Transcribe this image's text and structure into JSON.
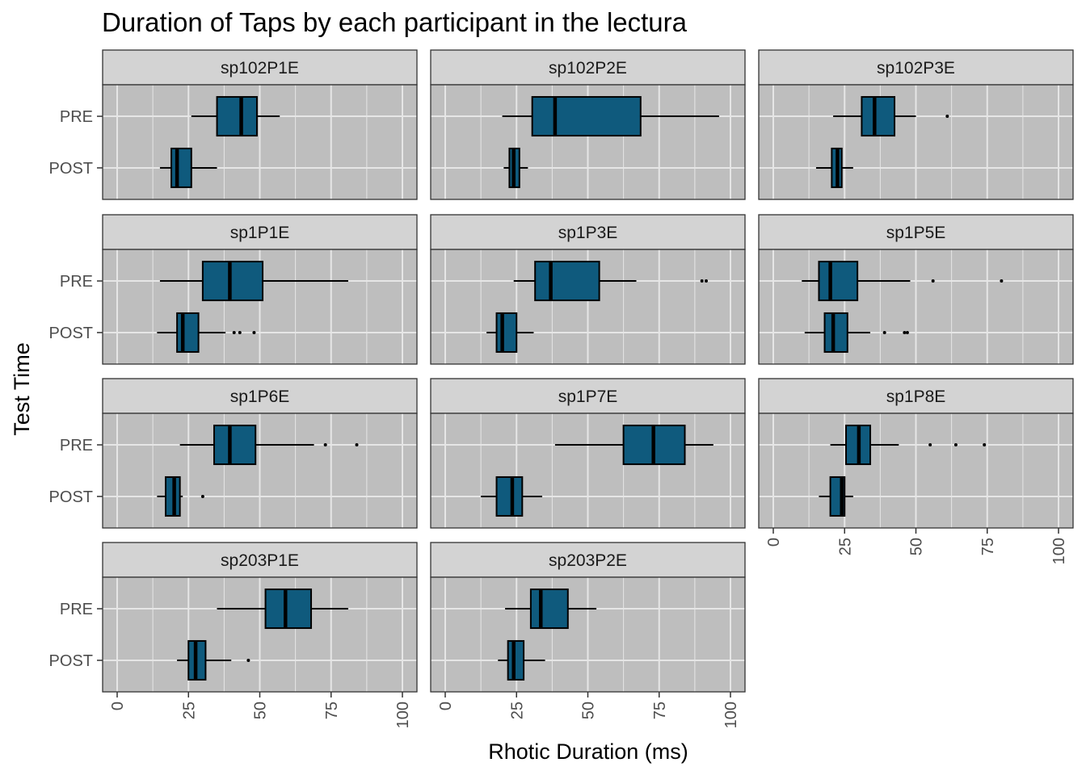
{
  "chart_data": {
    "type": "boxplot",
    "title": "Duration of Taps by each participant in the lectura",
    "xlabel": "Rhotic Duration (ms)",
    "ylabel": "Test Time",
    "categories": [
      "PRE",
      "POST"
    ],
    "xlim": [
      0,
      100
    ],
    "x_ticks": [
      "0",
      "25",
      "50",
      "75",
      "100"
    ],
    "grid": true,
    "legend": "none",
    "colors": {
      "box_fill": "#0f5a7d",
      "panel_bg": "#bebebe",
      "strip_bg": "#d3d3d3",
      "grid": "#e6e6e6"
    },
    "panels": [
      {
        "name": "sp102P1E",
        "boxes": [
          {
            "group": "PRE",
            "whisker_low": 26,
            "q1": 35,
            "median": 43.5,
            "q3": 49,
            "whisker_high": 57,
            "outliers": []
          },
          {
            "group": "POST",
            "whisker_low": 15,
            "q1": 19,
            "median": 21,
            "q3": 26,
            "whisker_high": 35,
            "outliers": []
          }
        ]
      },
      {
        "name": "sp102P2E",
        "boxes": [
          {
            "group": "PRE",
            "whisker_low": 20,
            "q1": 30.5,
            "median": 38.5,
            "q3": 68.5,
            "whisker_high": 96,
            "outliers": []
          },
          {
            "group": "POST",
            "whisker_low": 20.5,
            "q1": 22.5,
            "median": 24,
            "q3": 26,
            "whisker_high": 29,
            "outliers": []
          }
        ]
      },
      {
        "name": "sp102P3E",
        "boxes": [
          {
            "group": "PRE",
            "whisker_low": 21,
            "q1": 31,
            "median": 35.5,
            "q3": 42.5,
            "whisker_high": 50,
            "outliers": [
              61
            ]
          },
          {
            "group": "POST",
            "whisker_low": 15,
            "q1": 20.5,
            "median": 22.5,
            "q3": 24,
            "whisker_high": 28,
            "outliers": []
          }
        ]
      },
      {
        "name": "sp1P1E",
        "boxes": [
          {
            "group": "PRE",
            "whisker_low": 15,
            "q1": 30,
            "median": 39.5,
            "q3": 51,
            "whisker_high": 81,
            "outliers": []
          },
          {
            "group": "POST",
            "whisker_low": 14,
            "q1": 21,
            "median": 23,
            "q3": 28.5,
            "whisker_high": 38,
            "outliers": [
              41,
              43,
              48
            ]
          }
        ]
      },
      {
        "name": "sp1P3E",
        "boxes": [
          {
            "group": "PRE",
            "whisker_low": 24,
            "q1": 31.5,
            "median": 37,
            "q3": 54,
            "whisker_high": 67,
            "outliers": [
              90,
              91.5
            ]
          },
          {
            "group": "POST",
            "whisker_low": 14.5,
            "q1": 18,
            "median": 20,
            "q3": 25,
            "whisker_high": 31,
            "outliers": []
          }
        ]
      },
      {
        "name": "sp1P5E",
        "boxes": [
          {
            "group": "PRE",
            "whisker_low": 10,
            "q1": 16,
            "median": 20,
            "q3": 29.5,
            "whisker_high": 48,
            "outliers": [
              56,
              80
            ]
          },
          {
            "group": "POST",
            "whisker_low": 11,
            "q1": 18,
            "median": 21,
            "q3": 26,
            "whisker_high": 34,
            "outliers": [
              39,
              46,
              47
            ]
          }
        ]
      },
      {
        "name": "sp1P6E",
        "boxes": [
          {
            "group": "PRE",
            "whisker_low": 22,
            "q1": 34,
            "median": 39.5,
            "q3": 48.5,
            "whisker_high": 69,
            "outliers": [
              73,
              84
            ]
          },
          {
            "group": "POST",
            "whisker_low": 14,
            "q1": 17,
            "median": 20,
            "q3": 22,
            "whisker_high": 23,
            "outliers": [
              30
            ]
          }
        ]
      },
      {
        "name": "sp1P7E",
        "boxes": [
          {
            "group": "PRE",
            "whisker_low": 38.5,
            "q1": 62.5,
            "median": 73,
            "q3": 84,
            "whisker_high": 94,
            "outliers": []
          },
          {
            "group": "POST",
            "whisker_low": 12.5,
            "q1": 18,
            "median": 23.5,
            "q3": 27,
            "whisker_high": 34,
            "outliers": []
          }
        ]
      },
      {
        "name": "sp1P8E",
        "boxes": [
          {
            "group": "PRE",
            "whisker_low": 20,
            "q1": 25.5,
            "median": 30,
            "q3": 34,
            "whisker_high": 44,
            "outliers": [
              55,
              64,
              74
            ]
          },
          {
            "group": "POST",
            "whisker_low": 16,
            "q1": 20,
            "median": 24,
            "q3": 25,
            "whisker_high": 28,
            "outliers": []
          }
        ]
      },
      {
        "name": "sp203P1E",
        "boxes": [
          {
            "group": "PRE",
            "whisker_low": 35,
            "q1": 52,
            "median": 59,
            "q3": 68,
            "whisker_high": 81,
            "outliers": []
          },
          {
            "group": "POST",
            "whisker_low": 21,
            "q1": 25,
            "median": 27.5,
            "q3": 31,
            "whisker_high": 40,
            "outliers": [
              46
            ]
          }
        ]
      },
      {
        "name": "sp203P2E",
        "boxes": [
          {
            "group": "PRE",
            "whisker_low": 21,
            "q1": 30,
            "median": 33.5,
            "q3": 43,
            "whisker_high": 53,
            "outliers": []
          },
          {
            "group": "POST",
            "whisker_low": 18.5,
            "q1": 22,
            "median": 24,
            "q3": 27.5,
            "whisker_high": 35,
            "outliers": []
          }
        ]
      }
    ]
  }
}
